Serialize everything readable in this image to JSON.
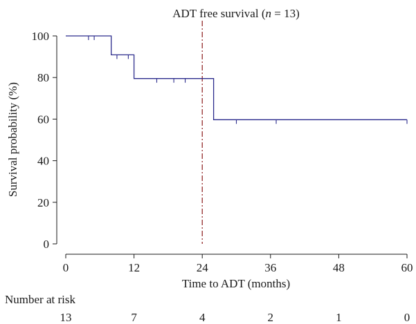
{
  "chart_data": {
    "type": "line",
    "title_prefix": "ADT free survival (",
    "title_n": "n",
    "title_suffix": " = 13)",
    "xlabel": "Time to ADT (months)",
    "ylabel": "Survival probability (%)",
    "xlim": [
      0,
      60
    ],
    "ylim": [
      0,
      100
    ],
    "x_ticks": [
      0,
      12,
      24,
      36,
      48,
      60
    ],
    "y_ticks": [
      0,
      20,
      40,
      60,
      80,
      100
    ],
    "grid": false,
    "line_color": "#2b2b8c",
    "reference_line_color": "#8b1a1a",
    "series": [
      {
        "steps": [
          {
            "x": 0,
            "y": 100
          },
          {
            "x": 8,
            "y": 100
          },
          {
            "x": 8,
            "y": 90.9
          },
          {
            "x": 12,
            "y": 90.9
          },
          {
            "x": 12,
            "y": 79.5
          },
          {
            "x": 26,
            "y": 79.5
          },
          {
            "x": 26,
            "y": 59.7
          },
          {
            "x": 60,
            "y": 59.7
          }
        ],
        "censored": [
          {
            "x": 4,
            "y": 100
          },
          {
            "x": 5,
            "y": 100
          },
          {
            "x": 9,
            "y": 90.9
          },
          {
            "x": 11,
            "y": 90.9
          },
          {
            "x": 16,
            "y": 79.5
          },
          {
            "x": 19,
            "y": 79.5
          },
          {
            "x": 21,
            "y": 79.5
          },
          {
            "x": 30,
            "y": 59.7
          },
          {
            "x": 37,
            "y": 59.7
          },
          {
            "x": 60,
            "y": 59.7
          }
        ]
      }
    ],
    "reference_line": {
      "x": 24
    },
    "risk_table": {
      "title": "Number at risk",
      "times": [
        0,
        12,
        24,
        36,
        48,
        60
      ],
      "counts": [
        "13",
        "7",
        "4",
        "2",
        "1",
        "0"
      ]
    }
  }
}
